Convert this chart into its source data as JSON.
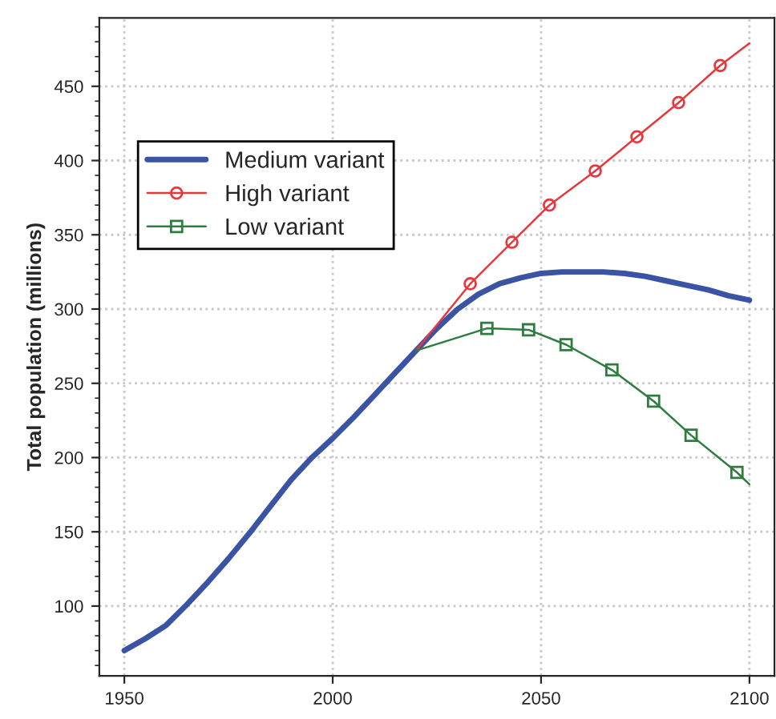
{
  "chart_data": {
    "type": "line",
    "ylabel": "Total population (millions)",
    "xlim": [
      1944,
      2106
    ],
    "xticks": [
      1950,
      2000,
      2050,
      2100
    ],
    "ylim": [
      53,
      496
    ],
    "yticks": [
      100,
      150,
      200,
      250,
      300,
      350,
      400,
      450
    ],
    "grid": true,
    "legend": "top left",
    "line_style": "solid",
    "series": [
      {
        "name": "Medium variant",
        "color": "#3a53a4",
        "marker": "none",
        "x": [
          1950,
          1955,
          1960,
          1965,
          1970,
          1975,
          1980,
          1985,
          1990,
          1995,
          2000,
          2005,
          2010,
          2015,
          2020,
          2025,
          2030,
          2035,
          2040,
          2045,
          2050,
          2055,
          2060,
          2065,
          2070,
          2075,
          2080,
          2085,
          2090,
          2095,
          2100
        ],
        "values": [
          70,
          78,
          87,
          101,
          116,
          132,
          149,
          167,
          185,
          200,
          213,
          227,
          242,
          257,
          272,
          287,
          300,
          310,
          317,
          321,
          324,
          325,
          325,
          325,
          324,
          322,
          319,
          316,
          313,
          309,
          306
        ]
      },
      {
        "name": "High variant",
        "color": "#e8383d",
        "marker": "circle",
        "x": [
          2020,
          2033,
          2043,
          2052,
          2063,
          2073,
          2083,
          2093,
          2100
        ],
        "values": [
          272,
          317,
          345,
          370,
          393,
          416,
          439,
          464,
          479
        ]
      },
      {
        "name": "Low variant",
        "color": "#2e7d3e",
        "marker": "square",
        "x": [
          2020,
          2037,
          2047,
          2056,
          2067,
          2077,
          2086,
          2097,
          2100
        ],
        "values": [
          272,
          287,
          286,
          276,
          259,
          238,
          215,
          190,
          182
        ]
      }
    ]
  }
}
